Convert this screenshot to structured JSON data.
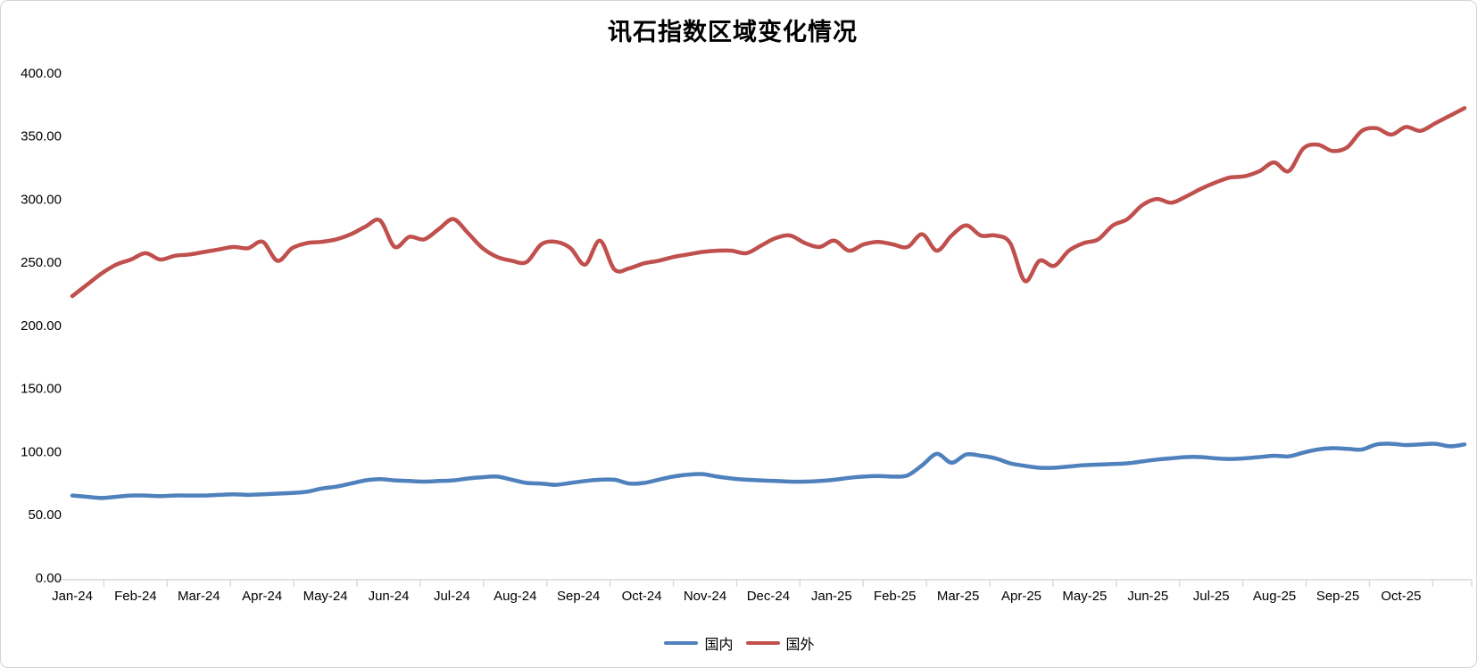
{
  "title": "讯石指数区域变化情况",
  "chart_data": {
    "type": "line",
    "title": "讯石指数区域变化情况",
    "x_labels": [
      "Jan-24",
      "Feb-24",
      "Mar-24",
      "Apr-24",
      "May-24",
      "Jun-24",
      "Jul-24",
      "Aug-24",
      "Sep-24",
      "Oct-24",
      "Nov-24",
      "Dec-24",
      "Jan-25",
      "Feb-25",
      "Mar-25",
      "Apr-25",
      "May-25",
      "Jun-25",
      "Jul-25",
      "Aug-25",
      "Sep-25",
      "Oct-25"
    ],
    "x_resolution": "weekly points, Jan-24 through Nov-25",
    "y_tick_labels": [
      "0.00",
      "50.00",
      "100.00",
      "150.00",
      "200.00",
      "250.00",
      "300.00",
      "350.00",
      "400.00"
    ],
    "ylim": [
      0,
      400
    ],
    "y_tick_step": 50,
    "grid": false,
    "legend_position": "bottom",
    "axis_color": "#d9d9d9",
    "series": [
      {
        "name": "国内",
        "color": "#4f81bd",
        "values": [
          66,
          65,
          64,
          65,
          66,
          66,
          65.5,
          66,
          66,
          66,
          66.5,
          67,
          66.5,
          67,
          67.5,
          68,
          69,
          71.5,
          73,
          75.5,
          78,
          79,
          78,
          77.5,
          77,
          77.5,
          78,
          79.5,
          80.5,
          81,
          78.5,
          76,
          75.5,
          74.5,
          76,
          77.5,
          78.5,
          78.5,
          75.5,
          76,
          78.5,
          81,
          82.5,
          83,
          81,
          79.5,
          78.5,
          78,
          77.5,
          77,
          77,
          77.5,
          78.5,
          80,
          81,
          81.5,
          81,
          82,
          90,
          99,
          92,
          98.5,
          97.5,
          95.5,
          91.5,
          89.5,
          88,
          88,
          89,
          90,
          90.5,
          91,
          91.5,
          93,
          94.5,
          95.5,
          96.5,
          96.5,
          95.5,
          95,
          95.5,
          96.5,
          97.5,
          97,
          100,
          102.5,
          103.5,
          103,
          102.5,
          106.5,
          107,
          106,
          106.5,
          107,
          105,
          106.5
        ]
      },
      {
        "name": "国外",
        "color": "#c0504d",
        "values": [
          224,
          233,
          242,
          249,
          253,
          258,
          253,
          256,
          257,
          259,
          261,
          263,
          262,
          267,
          252,
          262,
          266,
          267,
          269,
          273,
          279,
          284,
          263,
          271,
          269,
          277,
          285,
          274,
          262,
          255,
          252,
          251,
          265,
          267,
          262,
          249,
          268,
          245,
          246,
          250,
          252,
          255,
          257,
          259,
          260,
          260,
          258,
          264,
          270,
          272,
          266,
          263,
          268,
          260,
          265,
          267,
          265,
          263,
          273,
          260,
          272,
          280,
          272,
          272,
          266,
          236,
          252,
          248,
          260,
          266,
          269,
          280,
          285,
          296,
          301,
          298,
          303,
          309,
          314,
          318,
          319,
          323,
          330,
          323,
          341,
          344,
          339,
          342,
          355,
          357,
          352,
          358,
          355,
          361,
          367,
          373
        ]
      }
    ]
  }
}
